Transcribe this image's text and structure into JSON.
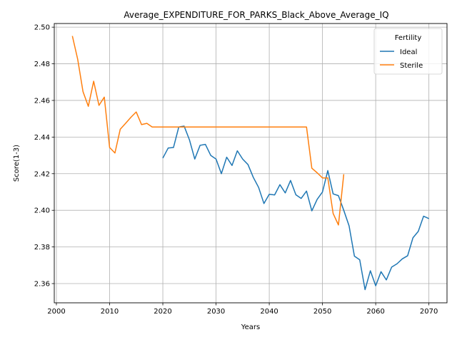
{
  "chart_data": {
    "type": "line",
    "title": "Average_EXPENDITURE_FOR_PARKS_Black_Above_Average_IQ",
    "xlabel": "Years",
    "ylabel": "Score(1-3)",
    "xlim": [
      1999.6,
      2073.4
    ],
    "ylim": [
      2.3495,
      2.502
    ],
    "xticks": [
      2000,
      2010,
      2020,
      2030,
      2040,
      2050,
      2060,
      2070
    ],
    "xtick_labels": [
      "2000",
      "2010",
      "2020",
      "2030",
      "2040",
      "2050",
      "2060",
      "2070"
    ],
    "yticks": [
      2.36,
      2.38,
      2.4,
      2.42,
      2.44,
      2.46,
      2.48,
      2.5
    ],
    "ytick_labels": [
      "2.36",
      "2.38",
      "2.40",
      "2.42",
      "2.44",
      "2.46",
      "2.48",
      "2.50"
    ],
    "grid": true,
    "legend": {
      "title": "Fertility",
      "placement": "top-right"
    },
    "series": [
      {
        "name": "Ideal",
        "color": "#1f77b4",
        "x": [
          2020,
          2021,
          2022,
          2023,
          2024,
          2025,
          2026,
          2027,
          2028,
          2029,
          2030,
          2031,
          2032,
          2033,
          2034,
          2035,
          2036,
          2037,
          2038,
          2039,
          2040,
          2041,
          2042,
          2043,
          2044,
          2045,
          2046,
          2047,
          2048,
          2049,
          2050,
          2051,
          2052,
          2053,
          2054,
          2055,
          2056,
          2057,
          2058,
          2059,
          2060,
          2061,
          2062,
          2063,
          2064,
          2065,
          2066,
          2067,
          2068,
          2069,
          2070
        ],
        "y": [
          2.4285,
          2.434,
          2.4343,
          2.4455,
          2.446,
          2.4385,
          2.428,
          2.4355,
          2.436,
          2.43,
          2.428,
          2.42,
          2.429,
          2.4245,
          2.4325,
          2.428,
          2.425,
          2.418,
          2.4125,
          2.4037,
          2.4088,
          2.4084,
          2.414,
          2.4095,
          2.4163,
          2.4085,
          2.4065,
          2.4105,
          2.3997,
          2.406,
          2.41,
          2.4217,
          2.409,
          2.408,
          2.4,
          2.3915,
          2.375,
          2.373,
          2.3567,
          2.367,
          2.3588,
          2.3665,
          2.362,
          2.369,
          2.3708,
          2.3735,
          2.3752,
          2.385,
          2.3885,
          2.3968,
          2.3955
        ]
      },
      {
        "name": "Sterile",
        "color": "#ff7f0e",
        "x": [
          2003,
          2004,
          2005,
          2006,
          2007,
          2008,
          2009,
          2010,
          2011,
          2012,
          2013,
          2014,
          2015,
          2016,
          2017,
          2018,
          2019,
          2020,
          2021,
          2022,
          2023,
          2024,
          2025,
          2026,
          2027,
          2028,
          2029,
          2030,
          2031,
          2032,
          2033,
          2034,
          2035,
          2036,
          2037,
          2038,
          2039,
          2040,
          2041,
          2042,
          2043,
          2044,
          2045,
          2046,
          2047,
          2048,
          2049,
          2050,
          2051,
          2052,
          2053,
          2054
        ],
        "y": [
          2.4952,
          2.4825,
          2.4648,
          2.4568,
          2.4705,
          2.4573,
          2.4618,
          2.4343,
          2.4313,
          2.4443,
          2.4475,
          2.4508,
          2.4537,
          2.4468,
          2.4475,
          2.4455,
          2.4455,
          2.4455,
          2.4455,
          2.4455,
          2.4455,
          2.4455,
          2.4455,
          2.4455,
          2.4455,
          2.4455,
          2.4455,
          2.4455,
          2.4455,
          2.4455,
          2.4455,
          2.4455,
          2.4455,
          2.4455,
          2.4455,
          2.4455,
          2.4455,
          2.4455,
          2.4455,
          2.4455,
          2.4455,
          2.4455,
          2.4455,
          2.4455,
          2.4455,
          2.423,
          2.4205,
          2.4177,
          2.4177,
          2.3983,
          2.392,
          2.4197
        ]
      }
    ]
  }
}
